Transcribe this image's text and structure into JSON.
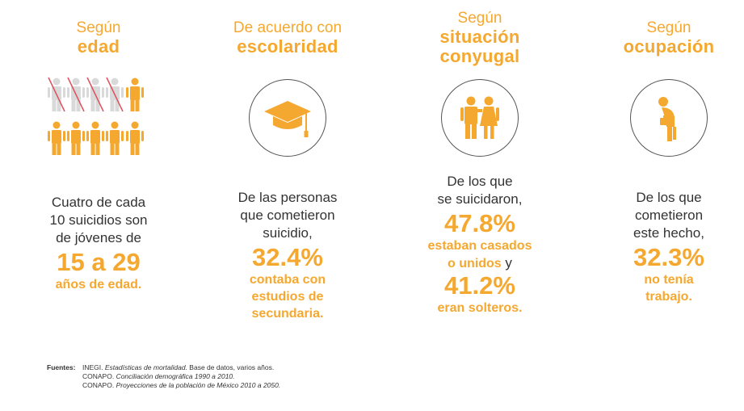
{
  "edad": {
    "heading_light": "Según",
    "heading_bold": "edad",
    "text": [
      "Cuatro de cada",
      "10 suicidios son",
      "de jóvenes de"
    ],
    "highlight": "15 a 29",
    "highlight_sub": "años de edad."
  },
  "escolaridad": {
    "heading_light": "De acuerdo con",
    "heading_bold": "escolaridad",
    "text": [
      "De las personas",
      "que cometieron",
      "suicidio,"
    ],
    "highlight": "32.4%",
    "highlight_sub": [
      "contaba con",
      "estudios de",
      "secundaria."
    ]
  },
  "conyugal": {
    "heading_light": "Según",
    "heading_bold": [
      "situación",
      "conyugal"
    ],
    "text": [
      "De los que",
      "se suicidaron,"
    ],
    "highlight1": "47.8%",
    "sub1a": "estaban casados",
    "sub1b": "o unidos",
    "sub1c": " y",
    "highlight2": "41.2%",
    "sub2": "eran solteros."
  },
  "ocupacion": {
    "heading_light": "Según",
    "heading_bold": "ocupación",
    "text": [
      "De los que",
      "cometieron",
      "este hecho,"
    ],
    "highlight": "32.3%",
    "highlight_sub": [
      "no tenía",
      "trabajo."
    ]
  },
  "footer": {
    "label": "Fuentes:",
    "line1_a": "INEGI. ",
    "line1_i": "Estadísticas de mortalidad.",
    "line1_b": " Base de datos, varios años.",
    "line2_a": "CONAPO. ",
    "line2_i": "Conciliación demográfica 1990 a 2010.",
    "line3_a": "CONAPO. ",
    "line3_i": "Proyecciones de la población de México 2010 a 2050."
  },
  "colors": {
    "accent": "#f5a830",
    "muted": "#d9d9d9",
    "strike": "#e0505a"
  },
  "icons": {
    "edad": "people-grid-icon",
    "escolaridad": "graduation-cap-icon",
    "conyugal": "couple-icon",
    "ocupacion": "unemployed-person-icon"
  }
}
